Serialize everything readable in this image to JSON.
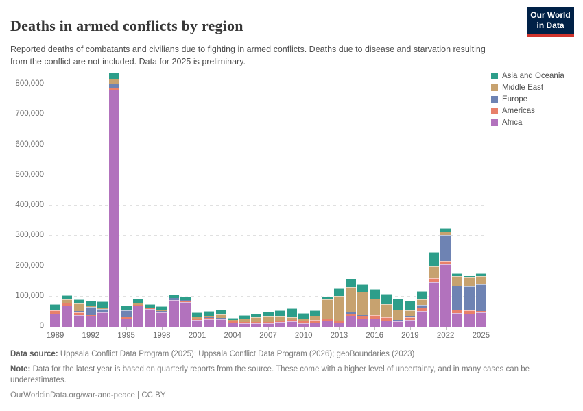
{
  "header": {
    "title": "Deaths in armed conflicts by region",
    "subtitle": "Reported deaths of combatants and civilians due to fighting in armed conflicts. Deaths due to disease and starvation resulting from the conflict are not included. Data for 2025 is preliminary.",
    "logo": {
      "line1": "Our World",
      "line2": "in Data",
      "bg": "#002147",
      "accent": "#d0342c"
    }
  },
  "chart_data": {
    "type": "bar",
    "stacked": true,
    "title": "Deaths in armed conflicts by region",
    "xlabel": "",
    "ylabel": "",
    "grid": "dashed-horizontal",
    "legend_position": "right",
    "ylim": [
      0,
      830000
    ],
    "yticks": [
      0,
      100000,
      200000,
      300000,
      400000,
      500000,
      600000,
      700000,
      800000
    ],
    "ytick_labels": [
      "0",
      "100,000",
      "200,000",
      "300,000",
      "400,000",
      "500,000",
      "600,000",
      "700,000",
      "800,000"
    ],
    "x": [
      1989,
      1990,
      1991,
      1992,
      1993,
      1994,
      1995,
      1996,
      1997,
      1998,
      1999,
      2000,
      2001,
      2002,
      2003,
      2004,
      2005,
      2006,
      2007,
      2008,
      2009,
      2010,
      2011,
      2012,
      2013,
      2014,
      2015,
      2016,
      2017,
      2018,
      2019,
      2020,
      2021,
      2022,
      2023,
      2024,
      2025
    ],
    "xtick_years": [
      1989,
      1992,
      1995,
      1998,
      2001,
      2004,
      2007,
      2010,
      2013,
      2016,
      2019,
      2022,
      2025
    ],
    "series": [
      {
        "name": "Africa",
        "color": "#b272bd",
        "values": [
          41000,
          68000,
          36000,
          33000,
          45000,
          780000,
          25000,
          67000,
          57000,
          46000,
          85000,
          80000,
          20000,
          23000,
          22000,
          11000,
          10000,
          9000,
          9000,
          13000,
          15000,
          10000,
          11000,
          18000,
          11000,
          35000,
          25000,
          26000,
          19000,
          15000,
          21000,
          50000,
          145000,
          203000,
          42000,
          40000,
          46000
        ]
      },
      {
        "name": "Americas",
        "color": "#e8806a",
        "values": [
          9000,
          7000,
          7000,
          4000,
          3000,
          4000,
          4000,
          2000,
          2000,
          2000,
          2000,
          1000,
          3000,
          5000,
          4000,
          4000,
          4000,
          4000,
          4000,
          5000,
          5000,
          6000,
          7000,
          5000,
          5000,
          5000,
          6000,
          7000,
          8000,
          4000,
          7000,
          8000,
          10000,
          9000,
          10000,
          9000,
          3000
        ]
      },
      {
        "name": "Europe",
        "color": "#6e83b3",
        "values": [
          300,
          300,
          4000,
          25000,
          6000,
          14000,
          20000,
          2000,
          1000,
          2000,
          5000,
          4000,
          2000,
          2000,
          1000,
          500,
          500,
          500,
          500,
          1000,
          1000,
          500,
          500,
          500,
          1000,
          5000,
          3000,
          1000,
          500,
          1000,
          3000,
          7000,
          1000,
          85000,
          78000,
          77000,
          86000
        ]
      },
      {
        "name": "Middle East",
        "color": "#c7a26f",
        "values": [
          1000,
          8000,
          22000,
          2000,
          2000,
          13000,
          2000,
          3000,
          2000,
          2000,
          1000,
          1000,
          4000,
          4000,
          10000,
          4000,
          8000,
          13000,
          16000,
          10000,
          6000,
          4000,
          11000,
          62000,
          81000,
          81000,
          74000,
          53000,
          41000,
          33000,
          16000,
          17000,
          36000,
          9000,
          29000,
          28000,
          25000
        ]
      },
      {
        "name": "Asia and Oceania",
        "color": "#2d9e8a",
        "values": [
          16000,
          11000,
          13000,
          15000,
          21000,
          19000,
          13000,
          14000,
          9000,
          11000,
          9000,
          9000,
          13000,
          13000,
          12000,
          6000,
          9000,
          10000,
          13000,
          19000,
          28000,
          18000,
          15000,
          8000,
          22000,
          25000,
          24000,
          28000,
          30000,
          32000,
          30000,
          24000,
          45000,
          8000,
          6000,
          5000,
          7000
        ]
      }
    ],
    "legend": [
      {
        "label": "Asia and Oceania",
        "color": "#2d9e8a"
      },
      {
        "label": "Middle East",
        "color": "#c7a26f"
      },
      {
        "label": "Europe",
        "color": "#6e83b3"
      },
      {
        "label": "Americas",
        "color": "#e8806a"
      },
      {
        "label": "Africa",
        "color": "#b272bd"
      }
    ]
  },
  "footer": {
    "source_label": "Data source:",
    "source_text": " Uppsala Conflict Data Program (2025); Uppsala Conflict Data Program (2026); geoBoundaries (2023)",
    "note_label": "Note:",
    "note_text": " Data for the latest year is based on quarterly reports from the source. These come with a higher level of uncertainty, and in many cases can be underestimates.",
    "link": "OurWorldinData.org/war-and-peace",
    "license": " | CC BY"
  }
}
